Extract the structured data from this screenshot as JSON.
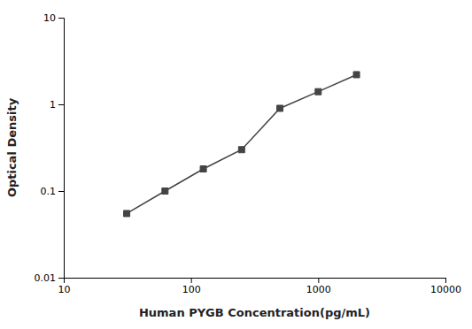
{
  "chart_data": {
    "type": "line",
    "x": [
      31.25,
      62.5,
      125,
      250,
      500,
      1000,
      2000
    ],
    "values": [
      0.055,
      0.1,
      0.18,
      0.3,
      0.9,
      1.4,
      2.2
    ],
    "color": "#444444",
    "marker": "square",
    "xlabel": "Human PYGB Concentration(pg/mL)",
    "ylabel": "Optical Density",
    "log": true,
    "xlim": [
      10,
      10000
    ],
    "ylim": [
      0.01,
      10
    ],
    "xticks": [
      10,
      100,
      1000,
      10000
    ],
    "yticks": [
      0.01,
      0.1,
      1,
      10
    ]
  }
}
